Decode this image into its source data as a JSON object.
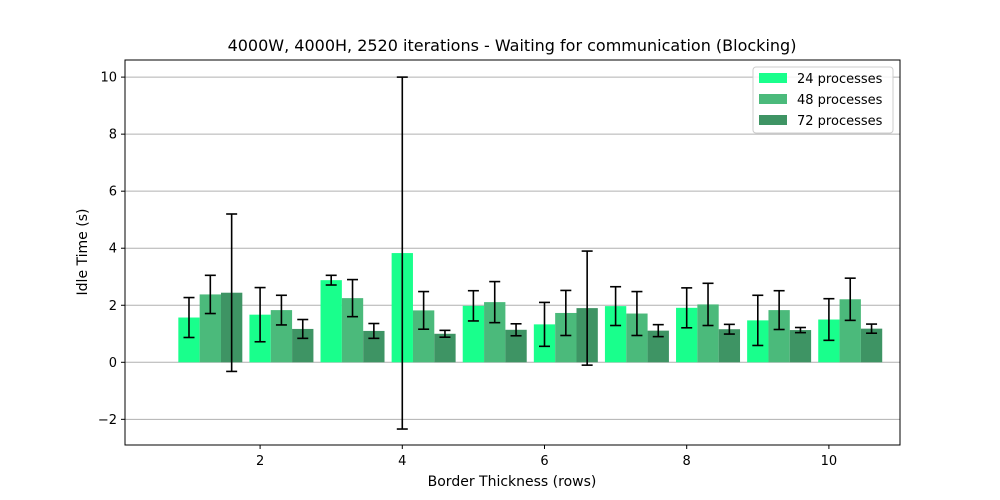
{
  "chart_data": {
    "type": "bar",
    "title": "4000W, 4000H, 2520 iterations - Waiting for communication (Blocking)",
    "xlabel": "Border Thickness (rows)",
    "ylabel": "Idle Time (s)",
    "x_ticks": [
      2,
      4,
      6,
      8,
      10
    ],
    "y_ticks": [
      -2,
      0,
      2,
      4,
      6,
      8,
      10
    ],
    "x_tick_labels": [
      "2",
      "4",
      "6",
      "8",
      "10"
    ],
    "y_tick_labels": [
      "−2",
      "0",
      "2",
      "4",
      "6",
      "8",
      "10"
    ],
    "xlim": [
      0.1,
      11.0
    ],
    "ylim": [
      -2.9,
      10.6
    ],
    "grid": "y",
    "legend_position": "top-right",
    "categories": [
      1,
      2,
      3,
      4,
      5,
      6,
      7,
      8,
      9,
      10
    ],
    "series": [
      {
        "name": "24 processes",
        "color": "#19ff8c",
        "values": [
          1.57,
          1.67,
          2.88,
          3.83,
          1.98,
          1.33,
          1.97,
          1.91,
          1.47,
          1.5
        ],
        "errors": [
          0.7,
          0.95,
          0.17,
          6.17,
          0.53,
          0.77,
          0.68,
          0.7,
          0.88,
          0.73
        ]
      },
      {
        "name": "48 processes",
        "color": "#4bba7b",
        "values": [
          2.38,
          1.83,
          2.25,
          1.82,
          2.11,
          1.73,
          1.71,
          2.03,
          1.83,
          2.21
        ],
        "errors": [
          0.67,
          0.52,
          0.65,
          0.66,
          0.72,
          0.79,
          0.77,
          0.74,
          0.68,
          0.74
        ]
      },
      {
        "name": "72 processes",
        "color": "#3e9464",
        "values": [
          2.44,
          1.17,
          1.1,
          1.0,
          1.14,
          1.9,
          1.11,
          1.16,
          1.13,
          1.18
        ]
      }
    ],
    "errors_72": [
      2.76,
      0.33,
      0.26,
      0.12,
      0.21,
      2.0,
      0.21,
      0.17,
      0.09,
      0.16
    ]
  }
}
